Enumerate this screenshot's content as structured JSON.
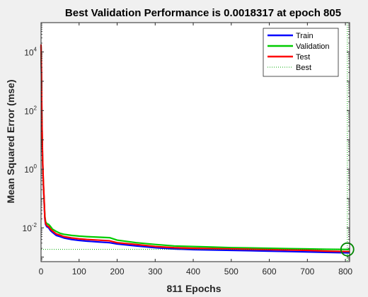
{
  "chart_data": {
    "type": "line",
    "title": "Best Validation Performance is 0.0018317 at epoch 805",
    "xlabel": "811 Epochs",
    "ylabel": "Mean Squared Error  (mse)",
    "xlim": [
      0,
      811
    ],
    "ylim": [
      0.0007,
      100000
    ],
    "yscale": "log",
    "x_ticks": [
      0,
      100,
      200,
      300,
      400,
      500,
      600,
      700,
      800
    ],
    "y_ticks": [
      {
        "value": 0.01,
        "base": "10",
        "exp": "-2"
      },
      {
        "value": 1,
        "base": "10",
        "exp": "0"
      },
      {
        "value": 100,
        "base": "10",
        "exp": "2"
      },
      {
        "value": 10000,
        "base": "10",
        "exp": "4"
      }
    ],
    "legend_position": "top-right",
    "grid": false,
    "series": [
      {
        "name": "Train",
        "color": "#0000ff",
        "x": [
          0,
          1,
          2,
          4,
          6,
          8,
          10,
          12,
          15,
          20,
          25,
          30,
          40,
          50,
          60,
          80,
          100,
          120,
          150,
          180,
          200,
          250,
          300,
          350,
          400,
          450,
          500,
          550,
          600,
          650,
          700,
          750,
          805,
          811
        ],
        "y": [
          15000,
          2000,
          60,
          2,
          0.3,
          0.08,
          0.02,
          0.013,
          0.011,
          0.01,
          0.008,
          0.007,
          0.0055,
          0.005,
          0.0045,
          0.004,
          0.0037,
          0.0035,
          0.0033,
          0.0031,
          0.0028,
          0.0024,
          0.0021,
          0.0019,
          0.0018,
          0.00175,
          0.0017,
          0.00165,
          0.0016,
          0.00155,
          0.0015,
          0.00145,
          0.0014,
          0.0014
        ]
      },
      {
        "name": "Validation",
        "color": "#00cc00",
        "x": [
          0,
          1,
          2,
          4,
          6,
          8,
          10,
          12,
          15,
          20,
          25,
          30,
          40,
          50,
          60,
          80,
          100,
          120,
          150,
          180,
          200,
          250,
          300,
          350,
          400,
          450,
          500,
          550,
          600,
          650,
          700,
          750,
          805,
          811
        ],
        "y": [
          16000,
          2200,
          70,
          2.4,
          0.35,
          0.09,
          0.025,
          0.016,
          0.014,
          0.013,
          0.011,
          0.009,
          0.0075,
          0.0065,
          0.006,
          0.0055,
          0.0052,
          0.005,
          0.0048,
          0.0046,
          0.0038,
          0.0031,
          0.0027,
          0.0024,
          0.0023,
          0.0022,
          0.0021,
          0.00205,
          0.002,
          0.00195,
          0.0019,
          0.00185,
          0.0018317,
          0.00184
        ]
      },
      {
        "name": "Test",
        "color": "#ff0000",
        "x": [
          0,
          1,
          2,
          4,
          6,
          8,
          10,
          12,
          15,
          20,
          25,
          30,
          40,
          50,
          60,
          80,
          100,
          120,
          150,
          180,
          200,
          250,
          300,
          350,
          400,
          450,
          500,
          550,
          600,
          650,
          700,
          750,
          805,
          811
        ],
        "y": [
          18000,
          2500,
          80,
          2.6,
          0.38,
          0.1,
          0.022,
          0.014,
          0.012,
          0.011,
          0.009,
          0.0078,
          0.0062,
          0.0056,
          0.005,
          0.0045,
          0.0042,
          0.004,
          0.0038,
          0.0036,
          0.0031,
          0.0027,
          0.0023,
          0.0021,
          0.002,
          0.00195,
          0.0019,
          0.00185,
          0.0018,
          0.00175,
          0.0017,
          0.0016,
          0.00155,
          0.00155
        ]
      }
    ],
    "best": {
      "name": "Best",
      "epoch": 805,
      "value": 0.0018317,
      "color": "#00aa00"
    }
  }
}
